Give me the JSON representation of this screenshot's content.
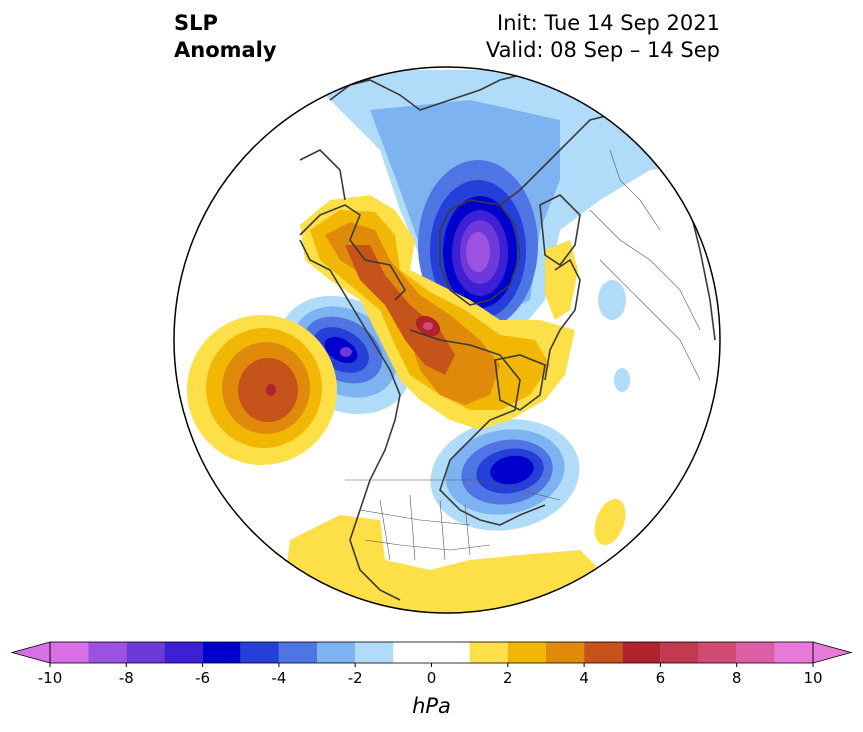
{
  "title": {
    "left_line1": "SLP",
    "left_line2": "Anomaly",
    "right_line1": "Init: Tue 14 Sep 2021",
    "right_line2": "Valid: 08 Sep – 14 Sep"
  },
  "colorbar": {
    "unit_label": "hPa",
    "tick_labels": [
      "-10",
      "-8",
      "-6",
      "-4",
      "-2",
      "0",
      "2",
      "4",
      "6",
      "8",
      "10"
    ],
    "levels": [
      -10,
      -9,
      -8,
      -7,
      -6,
      -5,
      -4,
      -3,
      -2,
      -1,
      1,
      2,
      3,
      4,
      5,
      6,
      7,
      8,
      9,
      10
    ],
    "colors": [
      "#d96fe6",
      "#9b52e0",
      "#6f38d9",
      "#3d1fd4",
      "#0000cc",
      "#2540d9",
      "#4f74e3",
      "#7db3f0",
      "#b0dcfa",
      "#ffffff",
      "#fde047",
      "#f2b705",
      "#e08a0b",
      "#c6531a",
      "#b0232a",
      "#c23a4f",
      "#cf4b74",
      "#db5fa6",
      "#e87ad9"
    ],
    "extend": "both"
  },
  "map": {
    "projection": "north polar stereographic",
    "anomaly_centers": [
      {
        "region": "Siberia / Kara Sea",
        "min_hPa": -10
      },
      {
        "region": "Gulf of Alaska coast / Alaska",
        "min_hPa": -7
      },
      {
        "region": "Labrador / Hudson Bay east",
        "min_hPa": -6
      },
      {
        "region": "North Pacific south of Aleutians",
        "max_hPa": 6
      },
      {
        "region": "Arctic Ocean / East Siberian Sea",
        "max_hPa": 5
      },
      {
        "region": "Chukotka / Bering Strait",
        "max_hPa": 4
      },
      {
        "region": "Greenland / Canadian Archipelago",
        "max_hPa": 4
      },
      {
        "region": "Scandinavia",
        "max_hPa": 2
      },
      {
        "region": "Southern US / Mexico",
        "max_hPa": 2
      }
    ]
  }
}
